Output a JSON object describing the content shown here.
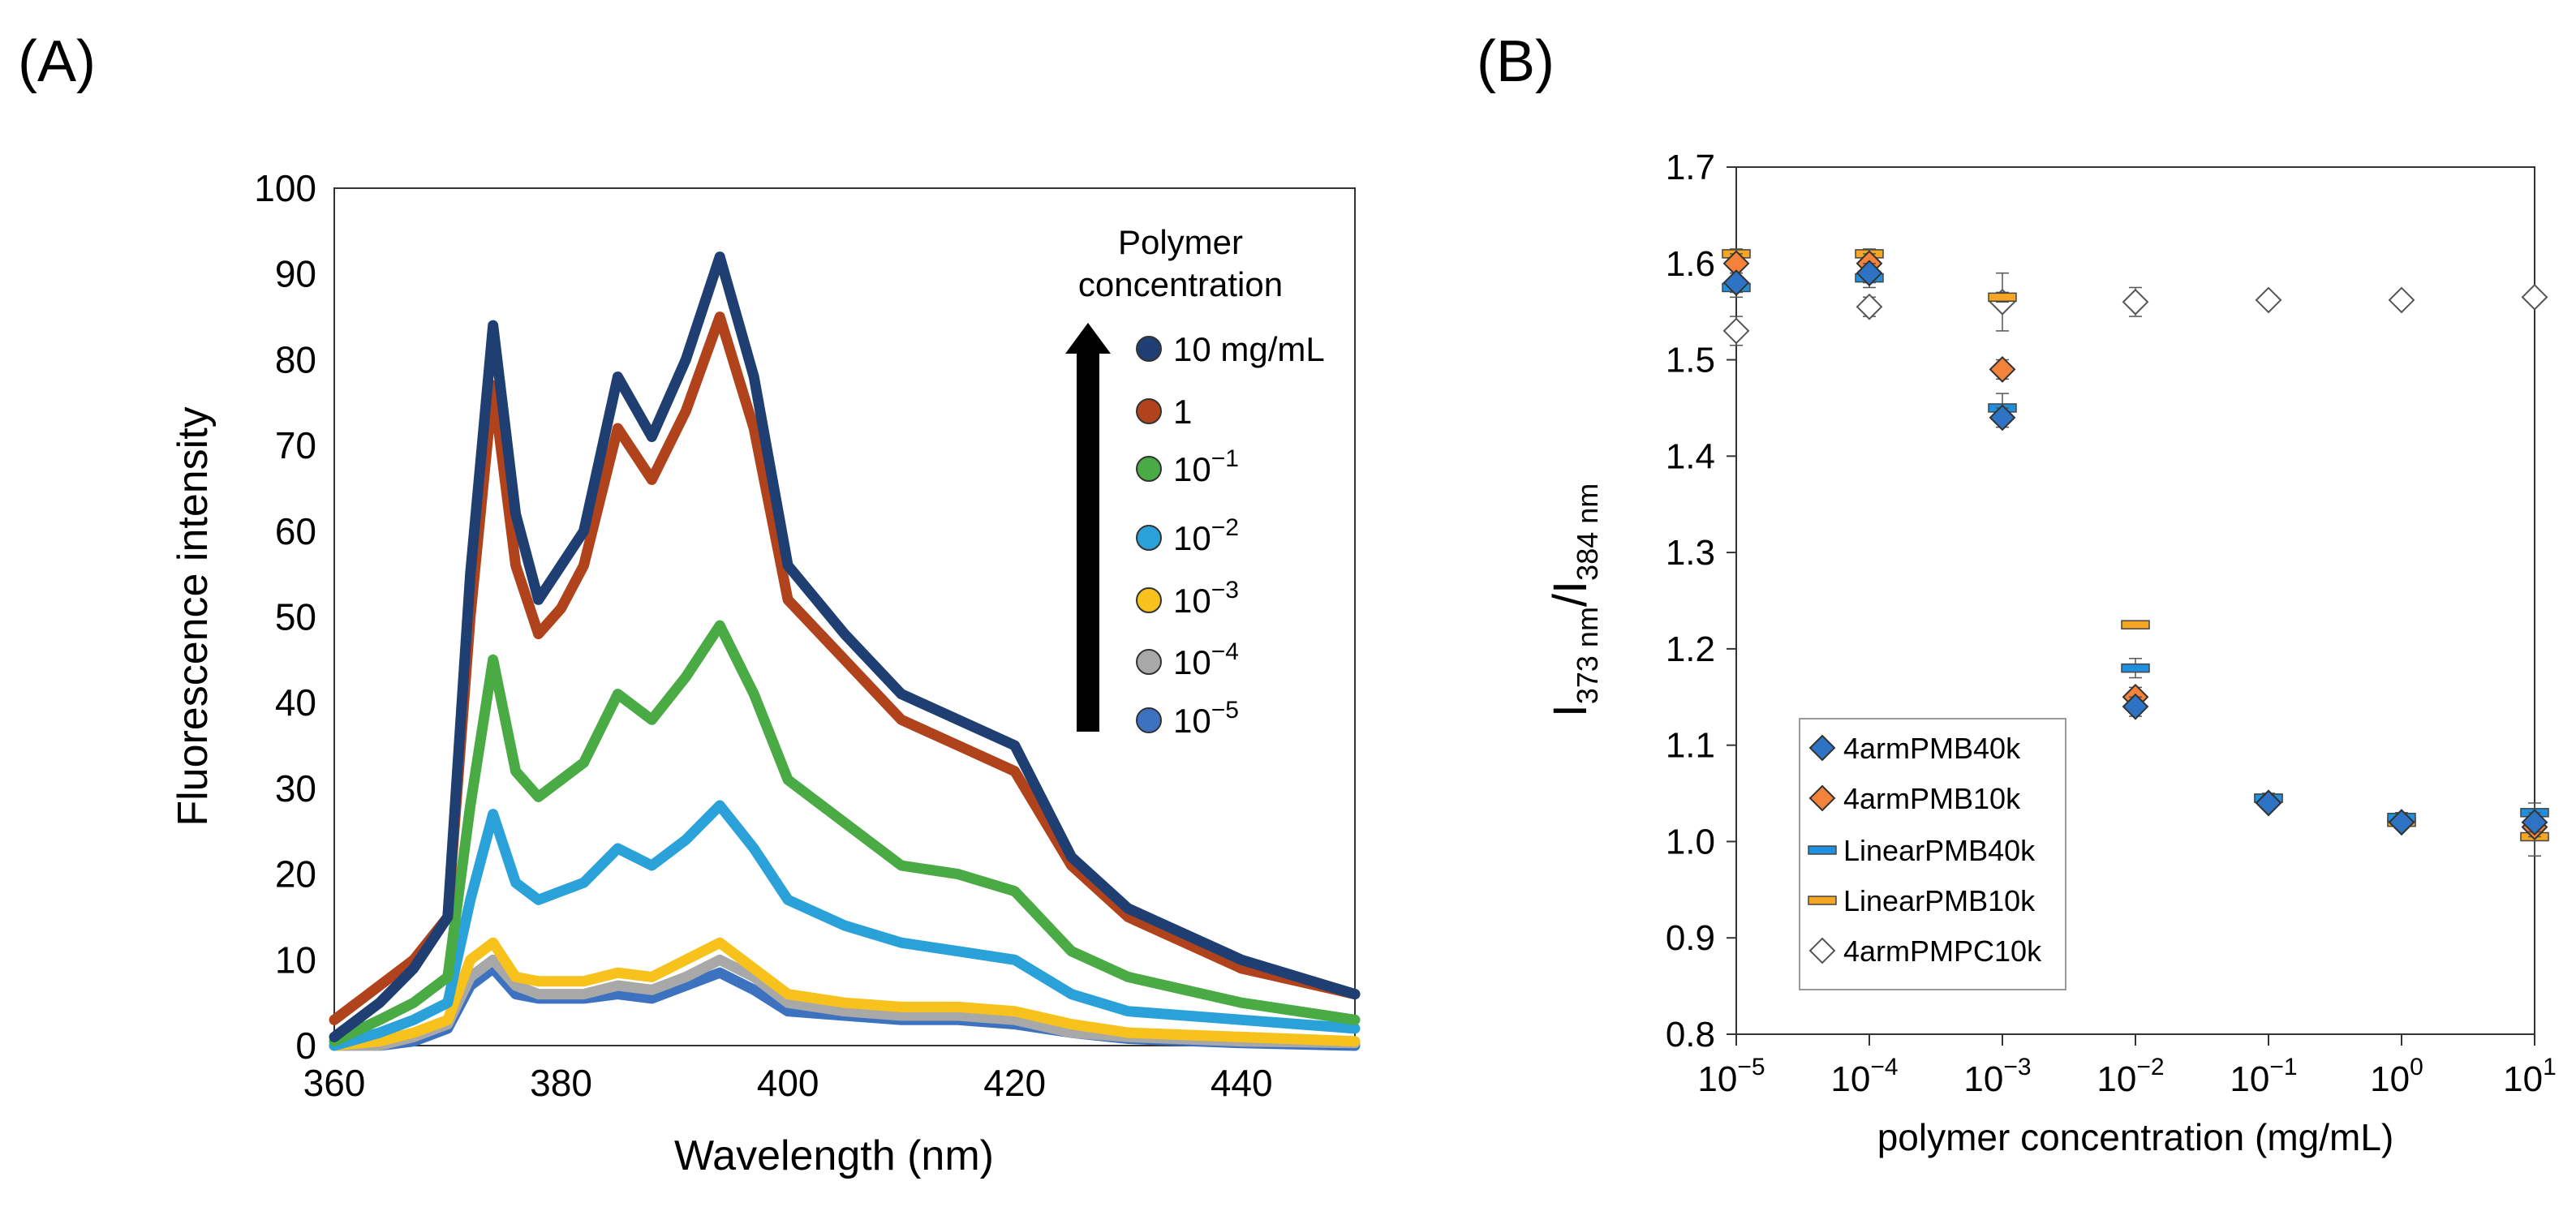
{
  "panel_labels": {
    "a": "(A)",
    "b": "(B)"
  },
  "chart_data": [
    {
      "type": "line",
      "title": "(A)",
      "xlabel": "Wavelength (nm)",
      "ylabel": "Fluorescence intensity",
      "xlim": [
        360,
        450
      ],
      "ylim": [
        0,
        100
      ],
      "x_ticks": [
        "360",
        "380",
        "400",
        "420",
        "440"
      ],
      "y_ticks": [
        "0",
        "10",
        "20",
        "30",
        "40",
        "50",
        "60",
        "70",
        "80",
        "90",
        "100"
      ],
      "grid": false,
      "legend": {
        "title_line1": "Polymer",
        "title_line2": "concentration",
        "position": "top-right",
        "arrow": "increasing concentration upward",
        "entries": [
          {
            "base": "10",
            "exp": "",
            "unit": "  mg/mL"
          },
          {
            "base": "1",
            "exp": "",
            "unit": ""
          },
          {
            "base": "10",
            "exp": "−1",
            "unit": ""
          },
          {
            "base": "10",
            "exp": "−2",
            "unit": ""
          },
          {
            "base": "10",
            "exp": "−3",
            "unit": ""
          },
          {
            "base": "10",
            "exp": "−4",
            "unit": ""
          },
          {
            "base": "10",
            "exp": "−5",
            "unit": ""
          }
        ]
      },
      "x_points": [
        360,
        364,
        367,
        370,
        372,
        374,
        376,
        378,
        380,
        382,
        385,
        388,
        391,
        394,
        397,
        400,
        405,
        410,
        415,
        420,
        425,
        430,
        440,
        450
      ],
      "series": [
        {
          "name": "10 mg/mL",
          "color": "#1f3f73",
          "values": [
            1,
            5,
            9,
            15,
            55,
            84,
            62,
            52,
            56,
            60,
            78,
            71,
            80,
            92,
            78,
            56,
            48,
            41,
            38,
            35,
            22,
            16,
            10,
            6
          ]
        },
        {
          "name": "1",
          "color": "#b0431c",
          "values": [
            3,
            7,
            10,
            15,
            50,
            77,
            56,
            48,
            51,
            56,
            72,
            66,
            74,
            85,
            72,
            52,
            45,
            38,
            35,
            32,
            21,
            15,
            9,
            6
          ]
        },
        {
          "name": "10^-1",
          "color": "#4aab44",
          "values": [
            0.5,
            3,
            5,
            8,
            28,
            45,
            32,
            29,
            31,
            33,
            41,
            38,
            43,
            49,
            41,
            31,
            26,
            21,
            20,
            18,
            11,
            8,
            5,
            3
          ]
        },
        {
          "name": "10^-2",
          "color": "#2aa2d9",
          "values": [
            0,
            1.5,
            3,
            5,
            17,
            27,
            19,
            17,
            18,
            19,
            23,
            21,
            24,
            28,
            23,
            17,
            14,
            12,
            11,
            10,
            6,
            4,
            3,
            2
          ]
        },
        {
          "name": "10^-3",
          "color": "#f7c21b",
          "values": [
            0,
            0.5,
            1.5,
            3,
            10,
            12,
            8,
            7.5,
            7.5,
            7.5,
            8.5,
            8,
            10,
            12,
            9,
            6,
            5,
            4.5,
            4.5,
            4,
            2.5,
            1.5,
            1,
            0.5
          ]
        },
        {
          "name": "10^-4",
          "color": "#a8a8a8",
          "values": [
            0,
            0,
            1,
            2.5,
            8,
            10,
            7,
            6,
            6,
            6,
            7,
            6.5,
            8,
            10,
            8,
            5,
            4,
            3.5,
            3.5,
            3,
            1.5,
            1,
            0.5,
            0.3
          ]
        },
        {
          "name": "10^-5",
          "color": "#3d72c0",
          "values": [
            0,
            0,
            0.5,
            2,
            7,
            9,
            6,
            5.5,
            5.5,
            5.5,
            6,
            5.5,
            7,
            8.5,
            6.5,
            4,
            3.5,
            3,
            3,
            2.5,
            1.5,
            0.8,
            0.3,
            0
          ]
        }
      ]
    },
    {
      "type": "scatter",
      "title": "(B)",
      "xlabel": "polymer concentration (mg/mL)",
      "ylabel": "I373 nm/I384 nm",
      "ylabel_parts": {
        "i1": "I",
        "sub1": "373 nm",
        "slash": "/",
        "i2": "I",
        "sub2": "384 nm"
      },
      "x_scale": "log",
      "x_log_range": [
        -5,
        1
      ],
      "ylim": [
        0.8,
        1.7
      ],
      "x_ticks": [
        {
          "base": "10",
          "exp": "−5"
        },
        {
          "base": "10",
          "exp": "−4"
        },
        {
          "base": "10",
          "exp": "−3"
        },
        {
          "base": "10",
          "exp": "−2"
        },
        {
          "base": "10",
          "exp": "−1"
        },
        {
          "base": "10",
          "exp": "0"
        },
        {
          "base": "10",
          "exp": "1"
        }
      ],
      "y_ticks": [
        "0.8",
        "0.9",
        "1.0",
        "1.1",
        "1.2",
        "1.3",
        "1.4",
        "1.5",
        "1.6",
        "1.7"
      ],
      "grid": false,
      "legend_position": "bottom-left",
      "series": [
        {
          "name": "4armPMB40k",
          "marker": "diamond",
          "color": "#2e73c4",
          "x_log": [
            -5,
            -4,
            -3,
            -2,
            -1,
            0,
            1
          ],
          "y": [
            1.58,
            1.59,
            1.44,
            1.14,
            1.04,
            1.02,
            1.02
          ],
          "err": [
            0.01,
            0.01,
            0.01,
            0.01,
            0.005,
            0.005,
            0.01
          ]
        },
        {
          "name": "4armPMB10k",
          "marker": "diamond",
          "color": "#f5823a",
          "x_log": [
            -5,
            -4,
            -3,
            -2,
            -1,
            0,
            1
          ],
          "y": [
            1.6,
            1.6,
            1.49,
            1.15,
            1.04,
            1.02,
            1.015
          ],
          "err": [
            0.01,
            0.01,
            0.01,
            0.01,
            0.005,
            0.005,
            0.01
          ]
        },
        {
          "name": "LinearPMB40k",
          "marker": "dash",
          "color": "#1f8fe0",
          "x_log": [
            -5,
            -4,
            -3,
            -2,
            -1,
            0,
            1
          ],
          "y": [
            1.575,
            1.585,
            1.45,
            1.18,
            1.045,
            1.025,
            1.03
          ],
          "err": [
            0.01,
            0.01,
            0.015,
            0.01,
            0.005,
            0.005,
            0.01
          ]
        },
        {
          "name": "LinearPMB10k",
          "marker": "dash",
          "color": "#f5a623",
          "x_log": [
            -5,
            -4,
            -3,
            -2,
            -1,
            0,
            1
          ],
          "y": [
            1.61,
            1.61,
            1.565,
            1.225,
            1.045,
            1.02,
            1.005
          ],
          "err": [
            0.005,
            0.005,
            0.005,
            0.003,
            0.005,
            0.005,
            0.02
          ]
        },
        {
          "name": "4armPMPC10k",
          "marker": "diamond-open",
          "color": "#ffffff",
          "x_log": [
            -5,
            -4,
            -3,
            -2,
            -1,
            0,
            1
          ],
          "y": [
            1.53,
            1.555,
            1.56,
            1.56,
            1.562,
            1.562,
            1.565
          ],
          "err": [
            0.015,
            0.01,
            0.03,
            0.015,
            0.005,
            0.005,
            0.005
          ]
        }
      ]
    }
  ]
}
